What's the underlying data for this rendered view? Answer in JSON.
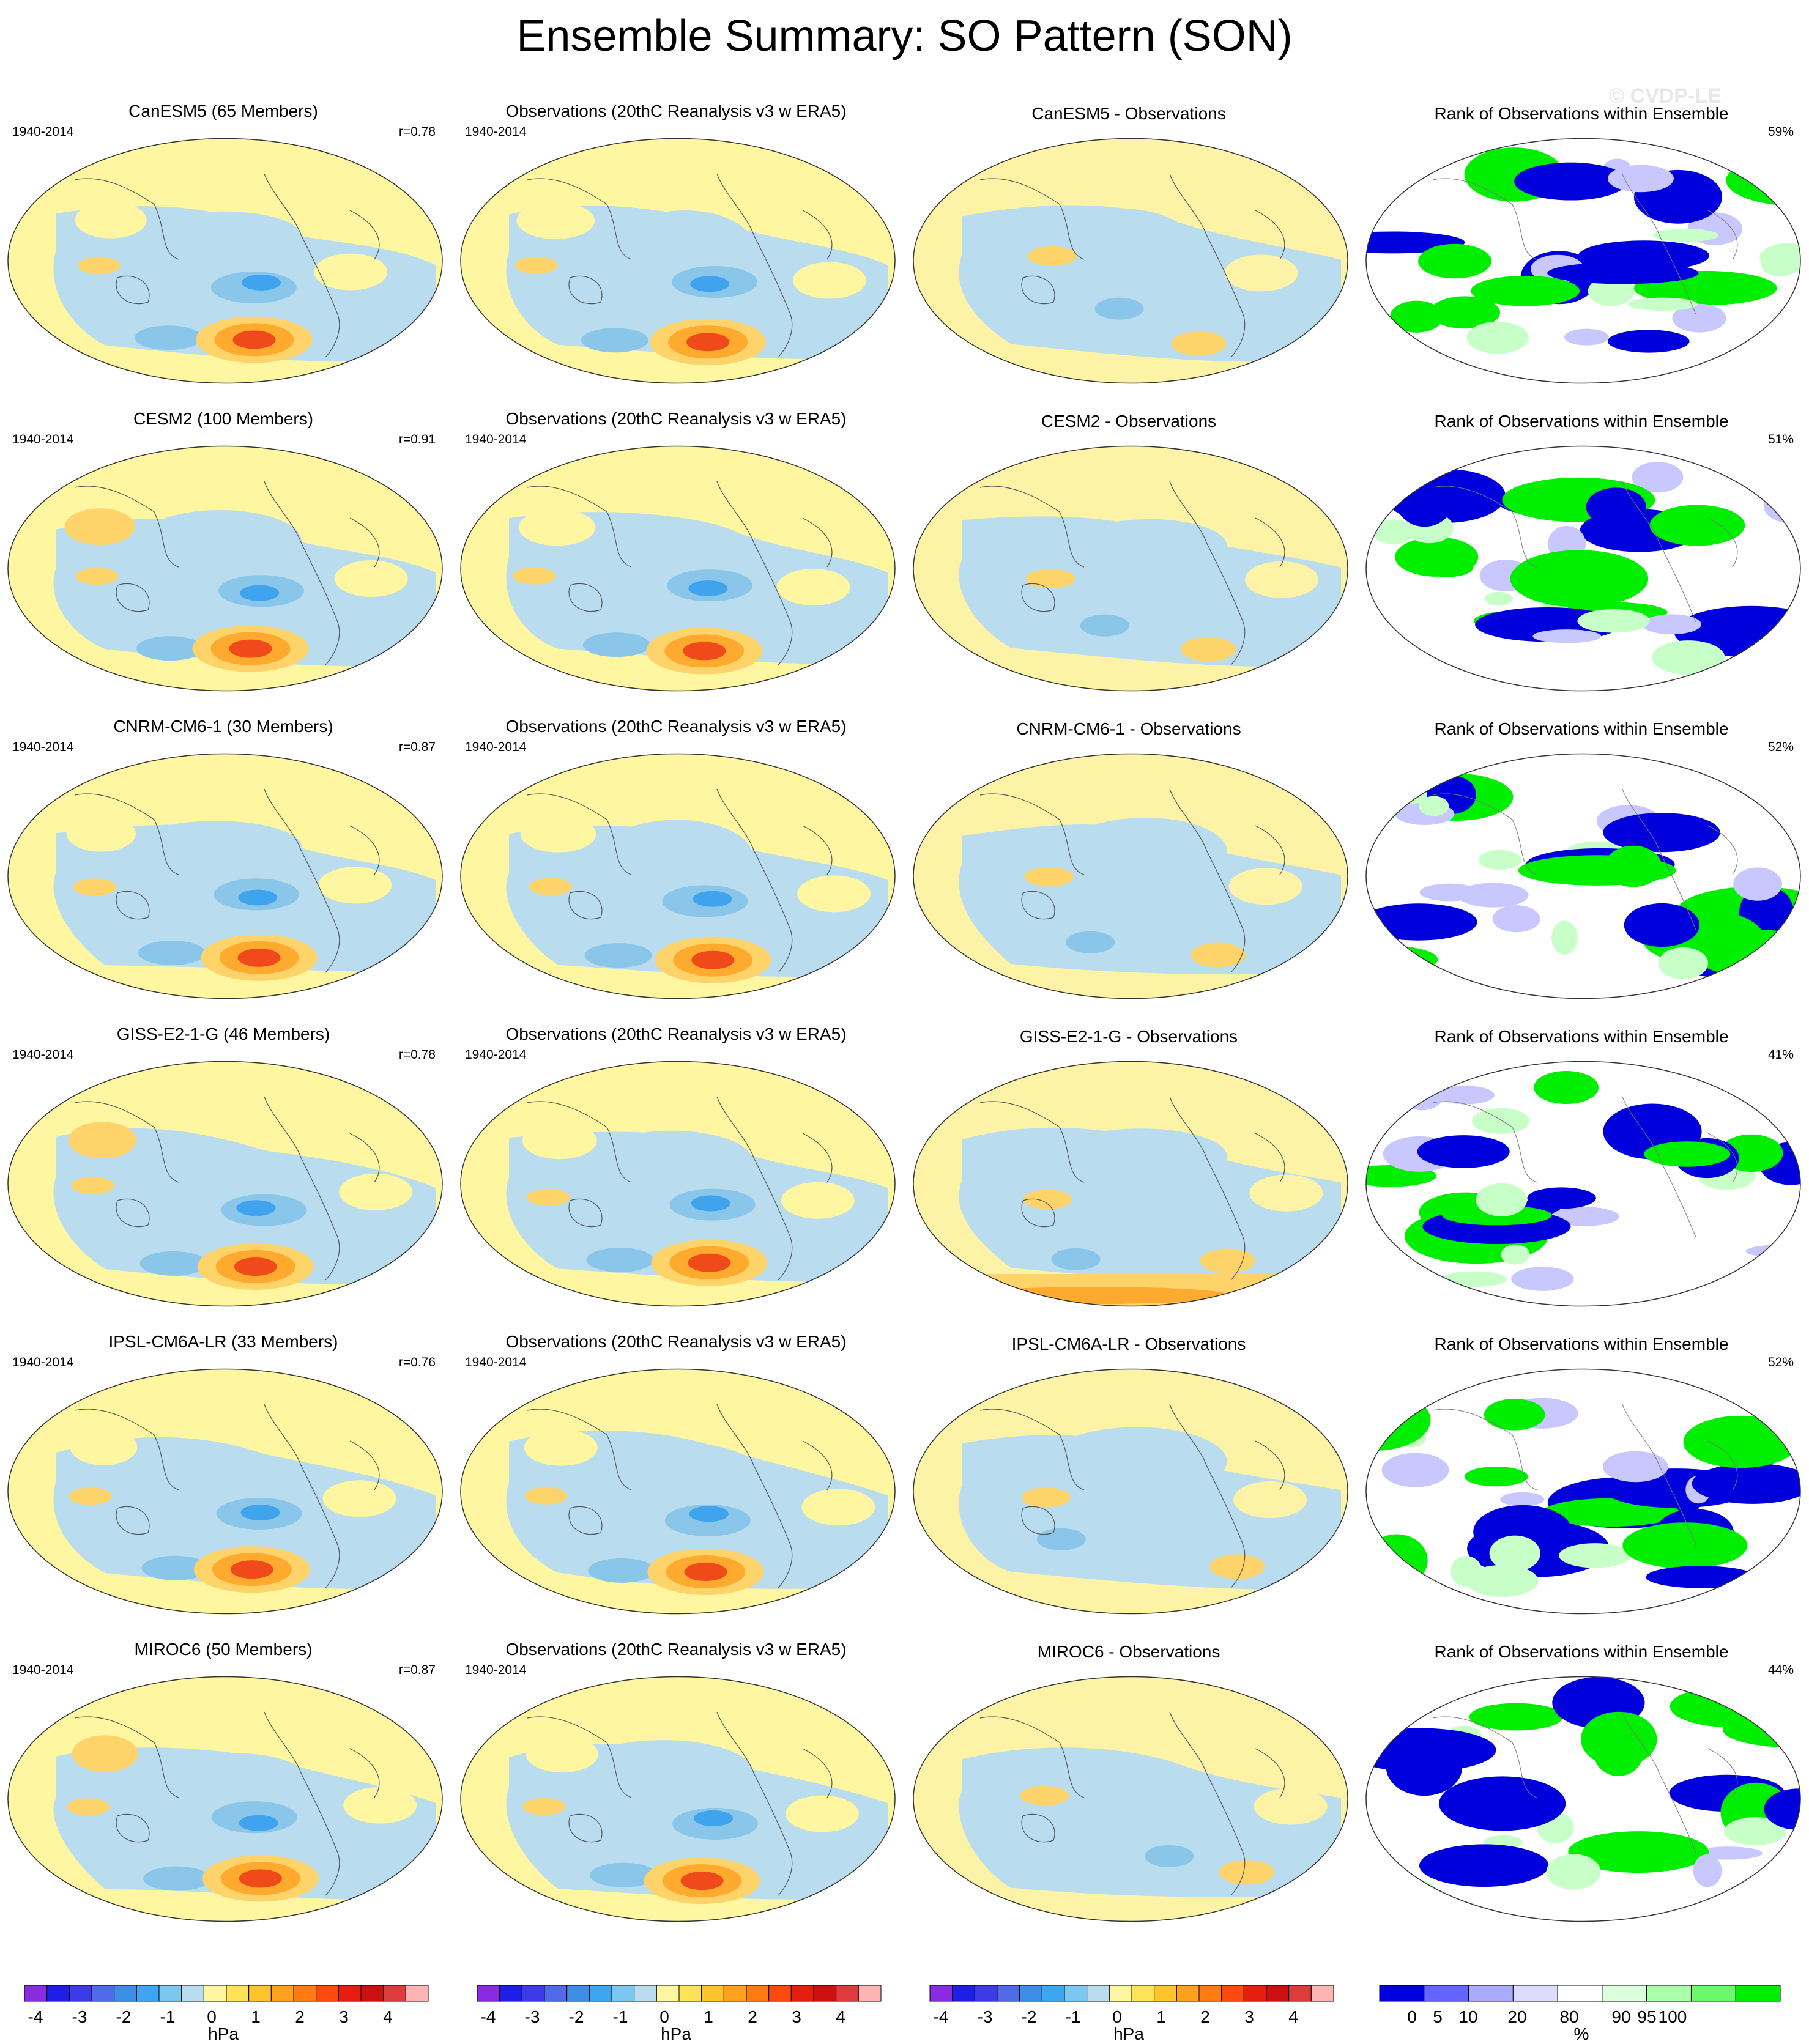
{
  "title": "Ensemble Summary: SO Pattern (SON)",
  "watermark": "© CVDP-LE",
  "colors": {
    "yellow": "#fef6a0",
    "lightblue": "#b9dcef",
    "blue_mid": "#8ac6ea",
    "blue_strong": "#3fa3ee",
    "orange_light": "#fed36a",
    "orange_mid": "#feaa2e",
    "red": "#f04a1a",
    "rank_green": "#00ee00",
    "rank_blue": "#0000dd",
    "rank_lightblue": "#c8c8ff",
    "rank_lightgreen": "#c8ffc8"
  },
  "rows": [
    {
      "model": {
        "title": "CanESM5 (65 Members)",
        "period": "1940-2014",
        "r": "r=0.78"
      },
      "obs": {
        "title": "Observations (20thC Reanalysis v3 w ERA5)",
        "period": "1940-2014"
      },
      "diff": {
        "title": "CanESM5 - Observations"
      },
      "rank": {
        "title": "Rank of Observations within Ensemble",
        "pct": "59%"
      }
    },
    {
      "model": {
        "title": "CESM2 (100 Members)",
        "period": "1940-2014",
        "r": "r=0.91"
      },
      "obs": {
        "title": "Observations (20thC Reanalysis v3 w ERA5)",
        "period": "1940-2014"
      },
      "diff": {
        "title": "CESM2 - Observations"
      },
      "rank": {
        "title": "Rank of Observations within Ensemble",
        "pct": "51%"
      }
    },
    {
      "model": {
        "title": "CNRM-CM6-1 (30 Members)",
        "period": "1940-2014",
        "r": "r=0.87"
      },
      "obs": {
        "title": "Observations (20thC Reanalysis v3 w ERA5)",
        "period": "1940-2014"
      },
      "diff": {
        "title": "CNRM-CM6-1 - Observations"
      },
      "rank": {
        "title": "Rank of Observations within Ensemble",
        "pct": "52%"
      }
    },
    {
      "model": {
        "title": "GISS-E2-1-G (46 Members)",
        "period": "1940-2014",
        "r": "r=0.78"
      },
      "obs": {
        "title": "Observations (20thC Reanalysis v3 w ERA5)",
        "period": "1940-2014"
      },
      "diff": {
        "title": "GISS-E2-1-G - Observations"
      },
      "rank": {
        "title": "Rank of Observations within Ensemble",
        "pct": "41%"
      }
    },
    {
      "model": {
        "title": "IPSL-CM6A-LR (33 Members)",
        "period": "1940-2014",
        "r": "r=0.76"
      },
      "obs": {
        "title": "Observations (20thC Reanalysis v3 w ERA5)",
        "period": "1940-2014"
      },
      "diff": {
        "title": "IPSL-CM6A-LR - Observations"
      },
      "rank": {
        "title": "Rank of Observations within Ensemble",
        "pct": "52%"
      }
    },
    {
      "model": {
        "title": "MIROC6 (50 Members)",
        "period": "1940-2014",
        "r": "r=0.87"
      },
      "obs": {
        "title": "Observations (20thC Reanalysis v3 w ERA5)",
        "period": "1940-2014"
      },
      "diff": {
        "title": "MIROC6 - Observations"
      },
      "rank": {
        "title": "Rank of Observations within Ensemble",
        "pct": "44%"
      }
    }
  ],
  "colorbar_hpa": {
    "unit": "hPa",
    "ticks": [
      "-4",
      "-3",
      "-2",
      "-1",
      "0",
      "1",
      "2",
      "3",
      "4"
    ],
    "colors": [
      "#8a2be2",
      "#1e1ee6",
      "#3c3ce6",
      "#4f6be6",
      "#3f8ee6",
      "#3ea6f0",
      "#7cc6f2",
      "#b9dcef",
      "#fef6a0",
      "#fee35a",
      "#fec42e",
      "#fea21e",
      "#fe7a12",
      "#fa4a10",
      "#e61e10",
      "#cc1010",
      "#dc3c3c",
      "#ffb4b4"
    ]
  },
  "colorbar_rank": {
    "unit": "%",
    "ticks": [
      "0",
      "5",
      "10",
      "20",
      "80",
      "90",
      "95",
      "100"
    ],
    "colors": [
      "#0000dd",
      "#6464ff",
      "#aaaaff",
      "#dcdcff",
      "#ffffff",
      "#dcffdc",
      "#aaffaa",
      "#6cf86c",
      "#00ee00"
    ]
  }
}
